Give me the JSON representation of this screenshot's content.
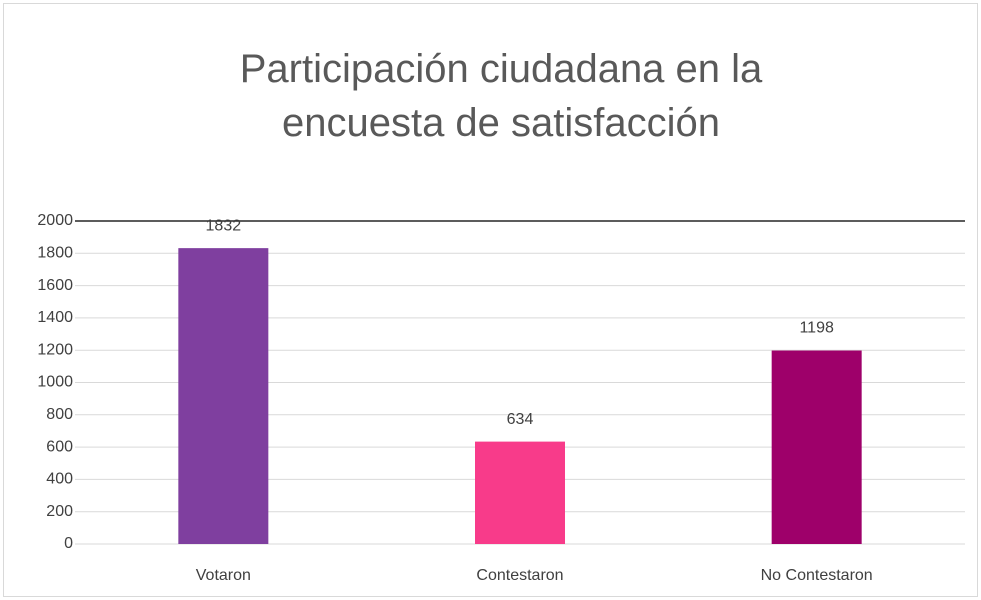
{
  "chart_data": {
    "type": "bar",
    "title": "Participación ciudadana en la encuesta de satisfacción",
    "categories": [
      "Votaron",
      "Contestaron",
      "No Contestaron"
    ],
    "values": [
      1832,
      634,
      1198
    ],
    "colors": [
      "#7f3f9f",
      "#f83b8a",
      "#9e006a"
    ],
    "ylim": [
      0,
      2000
    ],
    "yticks": [
      0,
      200,
      400,
      600,
      800,
      1000,
      1200,
      1400,
      1600,
      1800,
      2000
    ],
    "grid": true
  }
}
